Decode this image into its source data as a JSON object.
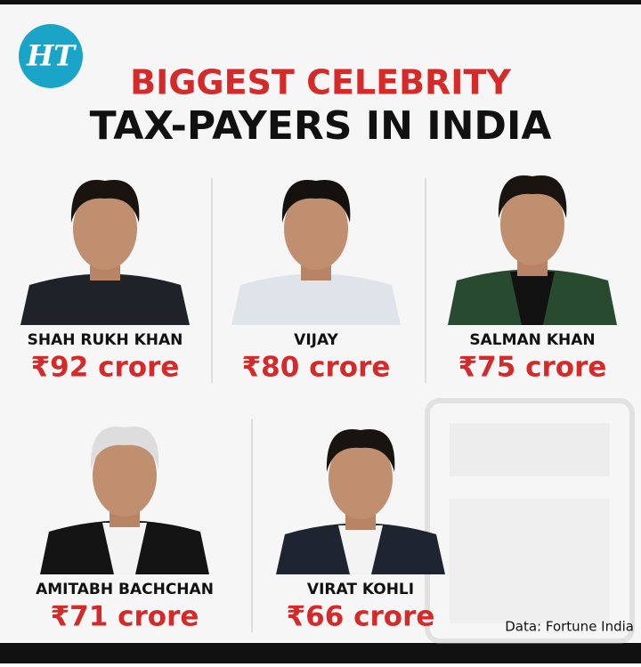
{
  "header": {
    "logo": "HT",
    "title_line1": "BIGGEST CELEBRITY",
    "title_line2": "TAX-PAYERS IN INDIA"
  },
  "celebrities": [
    {
      "name": "SHAH RUKH KHAN",
      "amount": "₹92 crore"
    },
    {
      "name": "VIJAY",
      "amount": "₹80 crore"
    },
    {
      "name": "SALMAN KHAN",
      "amount": "₹75 crore"
    },
    {
      "name": "AMITABH BACHCHAN",
      "amount": "₹71 crore"
    },
    {
      "name": "VIRAT KOHLI",
      "amount": "₹66 crore"
    }
  ],
  "source": "Data: Fortune India"
}
